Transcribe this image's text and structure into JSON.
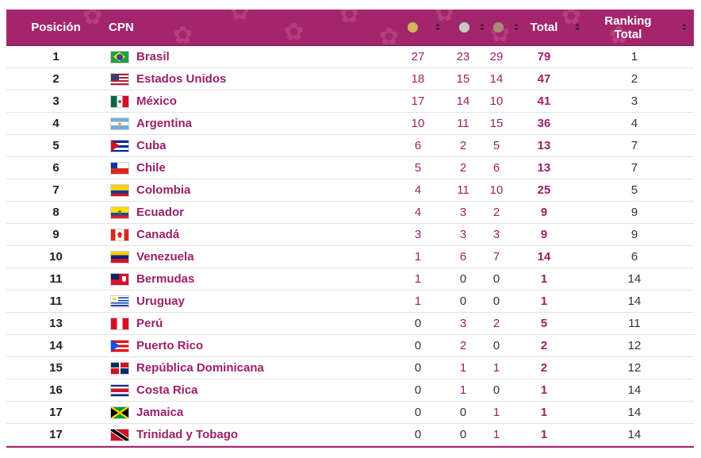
{
  "header": {
    "posicion": "Posición",
    "cpn": "CPN",
    "total": "Total",
    "ranking_line1": "Ranking",
    "ranking_line2": "Total",
    "medal_colors": {
      "gold": "#d4b45c",
      "silver": "#c8c8c8",
      "bronze": "#a98a7a"
    }
  },
  "colors": {
    "header_bg": "#a3266d",
    "country": "#9c1f6a"
  },
  "rows": [
    {
      "pos": "1",
      "country": "Brasil",
      "flag": "brazil",
      "gold": "27",
      "silver": "23",
      "bronze": "29",
      "total": "79",
      "rank": "1"
    },
    {
      "pos": "2",
      "country": "Estados Unidos",
      "flag": "usa",
      "gold": "18",
      "silver": "15",
      "bronze": "14",
      "total": "47",
      "rank": "2"
    },
    {
      "pos": "3",
      "country": "México",
      "flag": "mexico",
      "gold": "17",
      "silver": "14",
      "bronze": "10",
      "total": "41",
      "rank": "3"
    },
    {
      "pos": "4",
      "country": "Argentina",
      "flag": "argentina",
      "gold": "10",
      "silver": "11",
      "bronze": "15",
      "total": "36",
      "rank": "4"
    },
    {
      "pos": "5",
      "country": "Cuba",
      "flag": "cuba",
      "gold": "6",
      "silver": "2",
      "bronze": "5",
      "total": "13",
      "rank": "7"
    },
    {
      "pos": "6",
      "country": "Chile",
      "flag": "chile",
      "gold": "5",
      "silver": "2",
      "bronze": "6",
      "total": "13",
      "rank": "7"
    },
    {
      "pos": "7",
      "country": "Colombia",
      "flag": "colombia",
      "gold": "4",
      "silver": "11",
      "bronze": "10",
      "total": "25",
      "rank": "5"
    },
    {
      "pos": "8",
      "country": "Ecuador",
      "flag": "ecuador",
      "gold": "4",
      "silver": "3",
      "bronze": "2",
      "total": "9",
      "rank": "9"
    },
    {
      "pos": "9",
      "country": "Canadá",
      "flag": "canada",
      "gold": "3",
      "silver": "3",
      "bronze": "3",
      "total": "9",
      "rank": "9"
    },
    {
      "pos": "10",
      "country": "Venezuela",
      "flag": "venezuela",
      "gold": "1",
      "silver": "6",
      "bronze": "7",
      "total": "14",
      "rank": "6"
    },
    {
      "pos": "11",
      "country": "Bermudas",
      "flag": "bermuda",
      "gold": "1",
      "silver": "0",
      "bronze": "0",
      "total": "1",
      "rank": "14"
    },
    {
      "pos": "11",
      "country": "Uruguay",
      "flag": "uruguay",
      "gold": "1",
      "silver": "0",
      "bronze": "0",
      "total": "1",
      "rank": "14"
    },
    {
      "pos": "13",
      "country": "Perú",
      "flag": "peru",
      "gold": "0",
      "silver": "3",
      "bronze": "2",
      "total": "5",
      "rank": "11"
    },
    {
      "pos": "14",
      "country": "Puerto Rico",
      "flag": "puertorico",
      "gold": "0",
      "silver": "2",
      "bronze": "0",
      "total": "2",
      "rank": "12"
    },
    {
      "pos": "15",
      "country": "República Dominicana",
      "flag": "dominican",
      "gold": "0",
      "silver": "1",
      "bronze": "1",
      "total": "2",
      "rank": "12"
    },
    {
      "pos": "16",
      "country": "Costa Rica",
      "flag": "costarica",
      "gold": "0",
      "silver": "1",
      "bronze": "0",
      "total": "1",
      "rank": "14"
    },
    {
      "pos": "17",
      "country": "Jamaica",
      "flag": "jamaica",
      "gold": "0",
      "silver": "0",
      "bronze": "1",
      "total": "1",
      "rank": "14"
    },
    {
      "pos": "17",
      "country": "Trinidad y Tobago",
      "flag": "trinidad",
      "gold": "0",
      "silver": "0",
      "bronze": "1",
      "total": "1",
      "rank": "14"
    }
  ]
}
